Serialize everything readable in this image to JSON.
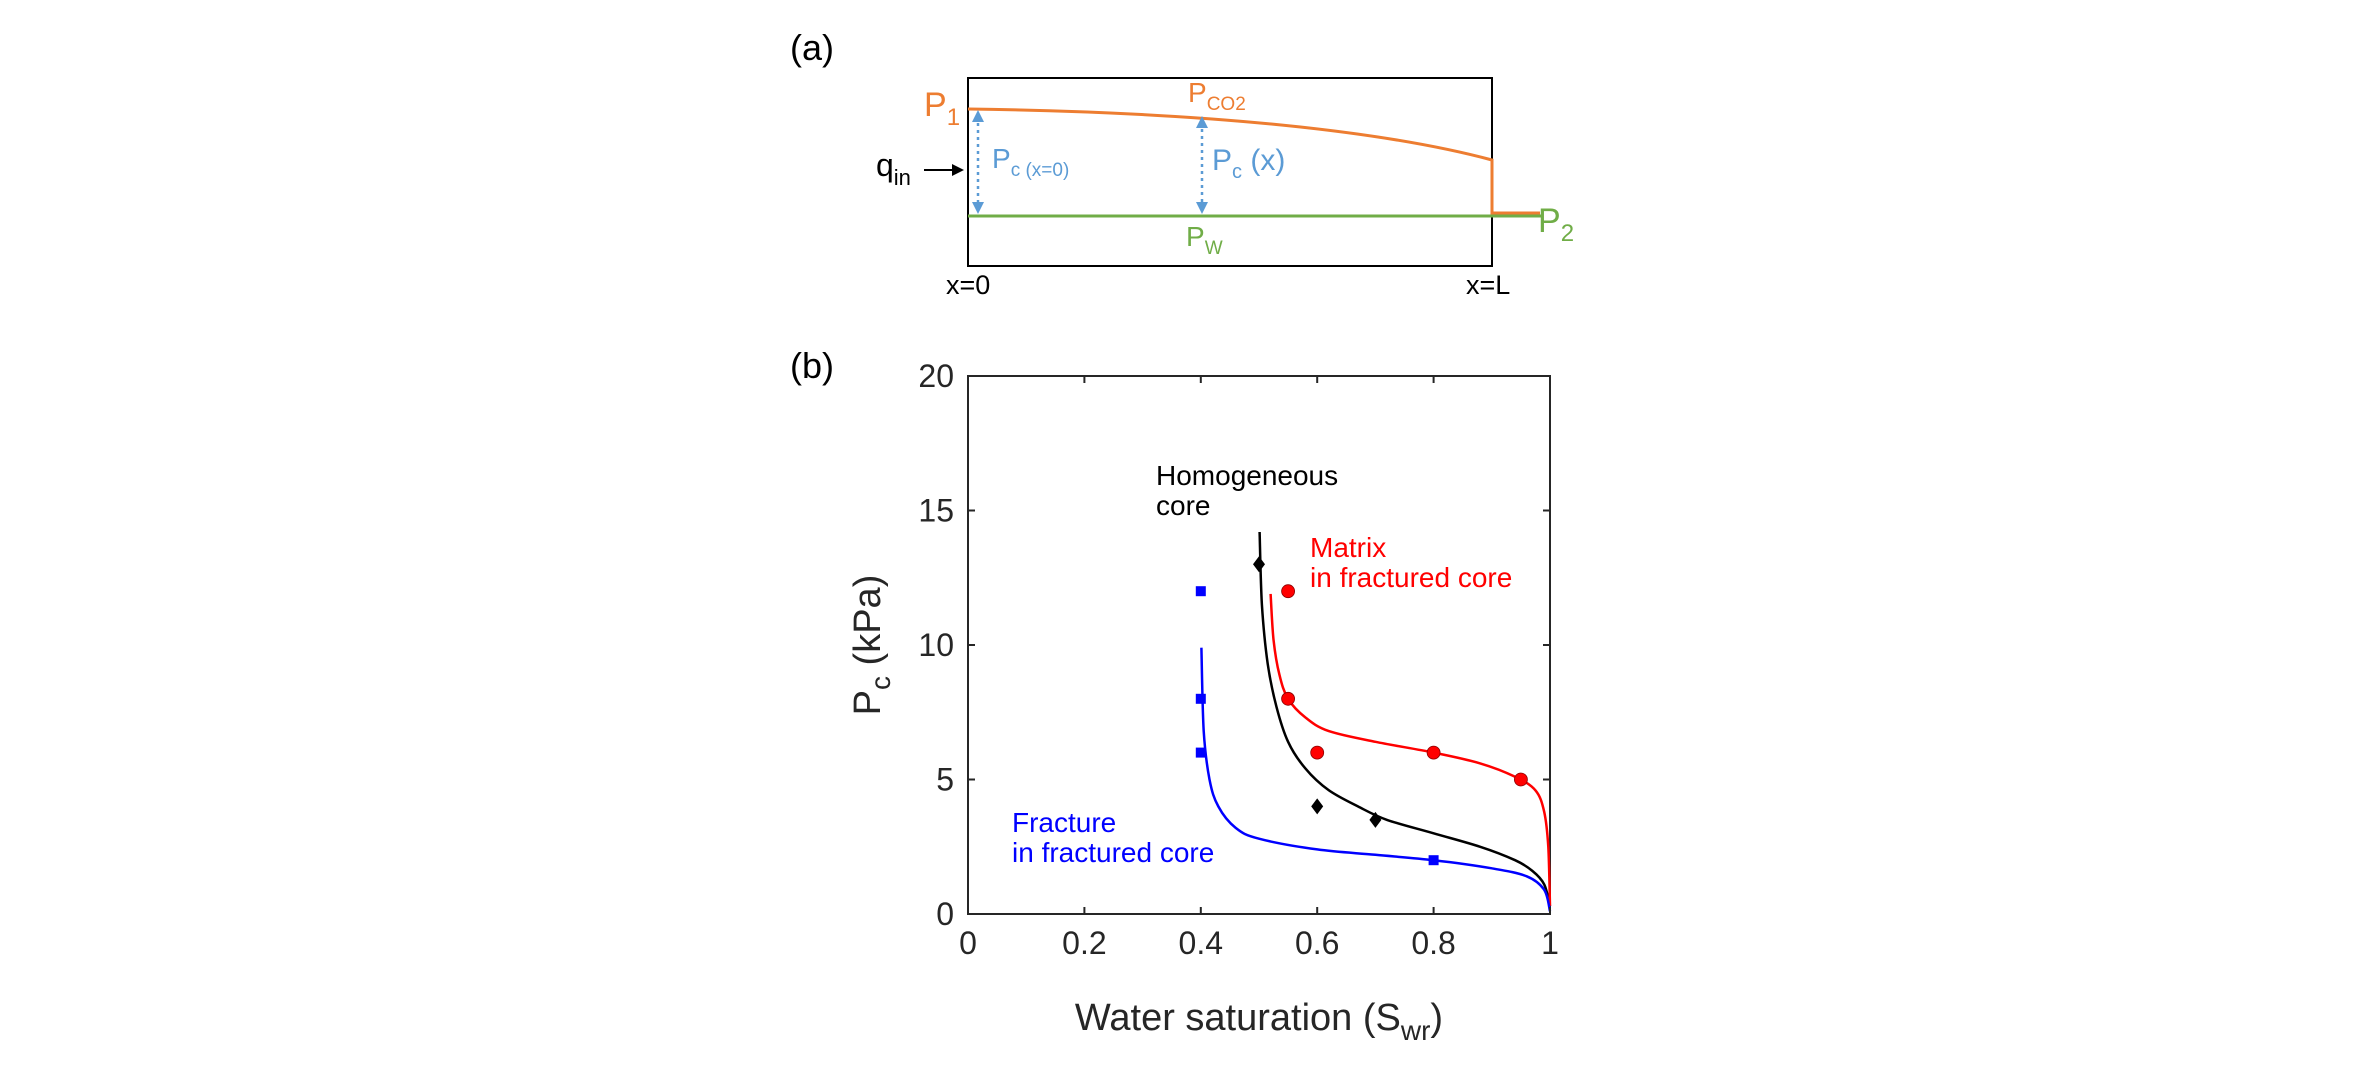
{
  "panel_a": {
    "label": "(a)",
    "p1": {
      "main": "P",
      "sub": "1"
    },
    "pco2": {
      "main": "P",
      "sub": "CO2"
    },
    "pc_x0": {
      "main": "P",
      "sub": "c (x=0)"
    },
    "pc_x": {
      "main": "P",
      "sub": "c",
      "tail": " (x)"
    },
    "qin": {
      "main": "q",
      "sub": "in"
    },
    "pw": {
      "main": "P",
      "sub": "W"
    },
    "p2": {
      "main": "P",
      "sub": "2"
    },
    "x0_label": "x=0",
    "xl_label": "x=L",
    "colors": {
      "co2": "#ED7D31",
      "water": "#70AD47",
      "capillary": "#5B9BD5",
      "frame": "#000000"
    }
  },
  "panel_b": {
    "label": "(b)",
    "annotations": {
      "homogeneous": [
        "Homogeneous",
        "core"
      ],
      "matrix": [
        "Matrix",
        "in fractured core"
      ],
      "fracture": [
        "Fracture",
        "in fractured core"
      ]
    }
  },
  "chart_data": {
    "type": "scatter",
    "title": "",
    "xlabel": {
      "main": "Water saturation (S",
      "sub": "wr",
      "tail": ")"
    },
    "ylabel": {
      "main": "P",
      "sub": "c",
      "tail": " (kPa)"
    },
    "xlim": [
      0,
      1
    ],
    "ylim": [
      0,
      20
    ],
    "xticks": [
      0,
      0.2,
      0.4,
      0.6,
      0.8,
      1
    ],
    "xtick_labels": [
      "0",
      "0.2",
      "0.4",
      "0.6",
      "0.8",
      "1"
    ],
    "yticks": [
      0,
      5,
      10,
      15,
      20
    ],
    "ytick_labels": [
      "0",
      "5",
      "10",
      "15",
      "20"
    ],
    "grid": false,
    "series": [
      {
        "name": "Homogeneous core",
        "color": "#000000",
        "marker": "diamond",
        "points": [
          [
            0.5,
            13.0
          ],
          [
            0.6,
            4.0
          ],
          [
            0.7,
            3.5
          ]
        ],
        "curve": [
          [
            0.501,
            14.2
          ],
          [
            0.505,
            11.5
          ],
          [
            0.515,
            9.3
          ],
          [
            0.53,
            7.7
          ],
          [
            0.55,
            6.4
          ],
          [
            0.58,
            5.4
          ],
          [
            0.62,
            4.6
          ],
          [
            0.67,
            4.0
          ],
          [
            0.72,
            3.5
          ],
          [
            0.8,
            3.0
          ],
          [
            0.88,
            2.5
          ],
          [
            0.94,
            2.0
          ],
          [
            0.97,
            1.6
          ],
          [
            0.99,
            1.1
          ],
          [
            1.0,
            0.3
          ]
        ]
      },
      {
        "name": "Matrix in fractured core",
        "color": "#FF0000",
        "marker": "circle",
        "points": [
          [
            0.55,
            12.0
          ],
          [
            0.55,
            8.0
          ],
          [
            0.6,
            6.0
          ],
          [
            0.8,
            6.0
          ],
          [
            0.95,
            5.0
          ]
        ],
        "curve": [
          [
            0.52,
            11.9
          ],
          [
            0.525,
            10.2
          ],
          [
            0.535,
            8.9
          ],
          [
            0.55,
            8.0
          ],
          [
            0.58,
            7.3
          ],
          [
            0.62,
            6.8
          ],
          [
            0.7,
            6.4
          ],
          [
            0.8,
            6.0
          ],
          [
            0.88,
            5.6
          ],
          [
            0.94,
            5.1
          ],
          [
            0.975,
            4.6
          ],
          [
            0.99,
            3.8
          ],
          [
            0.997,
            2.5
          ],
          [
            1.0,
            0.3
          ]
        ]
      },
      {
        "name": "Fracture in fractured core",
        "color": "#0000FF",
        "marker": "square",
        "points": [
          [
            0.4,
            12.0
          ],
          [
            0.4,
            8.0
          ],
          [
            0.4,
            6.0
          ],
          [
            0.8,
            2.0
          ]
        ],
        "curve": [
          [
            0.401,
            9.9
          ],
          [
            0.405,
            6.8
          ],
          [
            0.415,
            5.0
          ],
          [
            0.43,
            4.0
          ],
          [
            0.46,
            3.2
          ],
          [
            0.5,
            2.8
          ],
          [
            0.6,
            2.4
          ],
          [
            0.7,
            2.2
          ],
          [
            0.8,
            2.0
          ],
          [
            0.9,
            1.7
          ],
          [
            0.96,
            1.4
          ],
          [
            0.99,
            0.9
          ],
          [
            1.0,
            0.1
          ]
        ]
      }
    ]
  }
}
